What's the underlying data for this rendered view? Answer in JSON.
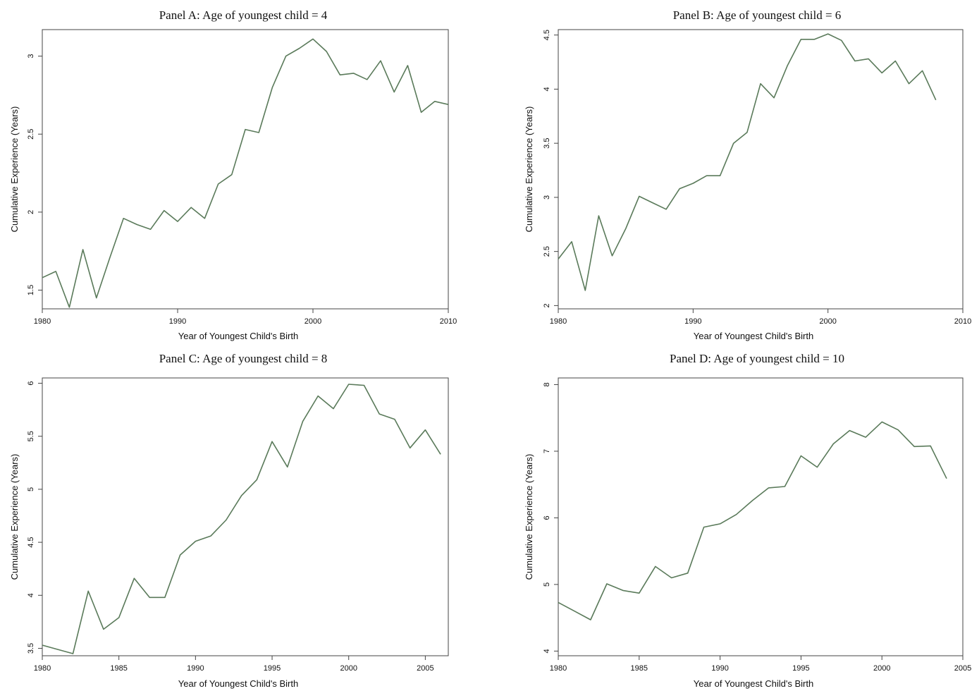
{
  "colors": {
    "line": "#5a7a5a",
    "frame": "#444444"
  },
  "chart_data": [
    {
      "type": "line",
      "title": "Panel A:  Age of youngest child = 4",
      "xlabel": "Year of Youngest Child's Birth",
      "ylabel": "Cumulative Experience (Years)",
      "xlim": [
        1980,
        2010
      ],
      "ylim": [
        1.38,
        3.17
      ],
      "xticks": [
        1980,
        1990,
        2000,
        2010
      ],
      "xtick_labels": [
        "1980",
        "1990",
        "2000",
        "2010"
      ],
      "yticks": [
        1.5,
        2,
        2.5,
        3
      ],
      "ytick_labels": [
        "1.5",
        "2",
        "2.5",
        "3"
      ],
      "grid": false,
      "legend": "none",
      "series": [
        {
          "x": [
            1980,
            1981,
            1982,
            1983,
            1984,
            1985,
            1986,
            1987,
            1988,
            1989,
            1990,
            1991,
            1992,
            1993,
            1994,
            1995,
            1996,
            1997,
            1998,
            1999,
            2000,
            2001,
            2002,
            2003,
            2004,
            2005,
            2006,
            2007,
            2008,
            2009,
            2010
          ],
          "values": [
            1.58,
            1.62,
            1.39,
            1.76,
            1.45,
            1.71,
            1.96,
            1.92,
            1.89,
            2.01,
            1.94,
            2.03,
            1.96,
            2.18,
            2.24,
            2.53,
            2.51,
            2.8,
            3.0,
            3.05,
            3.11,
            3.03,
            2.88,
            2.89,
            2.85,
            2.97,
            2.77,
            2.94,
            2.64,
            2.71,
            2.69
          ]
        }
      ]
    },
    {
      "type": "line",
      "title": "Panel B:  Age of youngest child = 6",
      "xlabel": "Year of Youngest Child's Birth",
      "ylabel": "Cumulative Experience (Years)",
      "xlim": [
        1980,
        2010
      ],
      "ylim": [
        1.97,
        4.55
      ],
      "xticks": [
        1980,
        1990,
        2000,
        2010
      ],
      "xtick_labels": [
        "1980",
        "1990",
        "2000",
        "2010"
      ],
      "yticks": [
        2,
        2.5,
        3,
        3.5,
        4,
        4.5
      ],
      "ytick_labels": [
        "2",
        "2.5",
        "3",
        "3.5",
        "4",
        "4.5"
      ],
      "grid": false,
      "legend": "none",
      "series": [
        {
          "x": [
            1980,
            1981,
            1982,
            1983,
            1984,
            1985,
            1986,
            1987,
            1988,
            1989,
            1990,
            1991,
            1992,
            1993,
            1994,
            1995,
            1996,
            1997,
            1998,
            1999,
            2000,
            2001,
            2002,
            2003,
            2004,
            2005,
            2006,
            2007,
            2008
          ],
          "values": [
            2.43,
            2.59,
            2.14,
            2.83,
            2.46,
            2.71,
            3.01,
            2.95,
            2.89,
            3.08,
            3.13,
            3.2,
            3.2,
            3.5,
            3.6,
            4.05,
            3.92,
            4.22,
            4.46,
            4.46,
            4.51,
            4.45,
            4.26,
            4.28,
            4.15,
            4.26,
            4.05,
            4.17,
            3.9
          ]
        }
      ]
    },
    {
      "type": "line",
      "title": "Panel C:  Age of youngest child = 8",
      "xlabel": "Year of Youngest Child's Birth",
      "ylabel": "Cumulative Experience (Years)",
      "xlim": [
        1980,
        2006.5
      ],
      "ylim": [
        3.43,
        6.05
      ],
      "xticks": [
        1980,
        1985,
        1990,
        1995,
        2000,
        2005
      ],
      "xtick_labels": [
        "1980",
        "1985",
        "1990",
        "1995",
        "2000",
        "2005"
      ],
      "yticks": [
        3.5,
        4,
        4.5,
        5,
        5.5,
        6
      ],
      "ytick_labels": [
        "3.5",
        "4",
        "4.5",
        "5",
        "5.5",
        "6"
      ],
      "grid": false,
      "legend": "none",
      "series": [
        {
          "x": [
            1980,
            1981,
            1982,
            1983,
            1984,
            1985,
            1986,
            1987,
            1988,
            1989,
            1990,
            1991,
            1992,
            1993,
            1994,
            1995,
            1996,
            1997,
            1998,
            1999,
            2000,
            2001,
            2002,
            2003,
            2004,
            2005,
            2006
          ],
          "values": [
            3.53,
            3.49,
            3.45,
            4.04,
            3.68,
            3.79,
            4.16,
            3.98,
            3.98,
            4.38,
            4.51,
            4.56,
            4.71,
            4.94,
            5.09,
            5.45,
            5.21,
            5.64,
            5.88,
            5.76,
            5.99,
            5.98,
            5.71,
            5.66,
            5.39,
            5.56,
            5.33
          ]
        }
      ]
    },
    {
      "type": "line",
      "title": "Panel D:  Age of youngest child = 10",
      "xlabel": "Year of Youngest Child's Birth",
      "ylabel": "Cumulative Experience (Years)",
      "xlim": [
        1980,
        2005
      ],
      "ylim": [
        3.93,
        8.1
      ],
      "xticks": [
        1980,
        1985,
        1990,
        1995,
        2000,
        2005
      ],
      "xtick_labels": [
        "1980",
        "1985",
        "1990",
        "1995",
        "2000",
        "2005"
      ],
      "yticks": [
        4,
        5,
        6,
        7,
        8
      ],
      "ytick_labels": [
        "4",
        "5",
        "6",
        "7",
        "8"
      ],
      "grid": false,
      "legend": "none",
      "series": [
        {
          "x": [
            1980,
            1981,
            1982,
            1983,
            1984,
            1985,
            1986,
            1987,
            1988,
            1989,
            1990,
            1991,
            1992,
            1993,
            1994,
            1995,
            1996,
            1997,
            1998,
            1999,
            2000,
            2001,
            2002,
            2003,
            2004
          ],
          "values": [
            4.73,
            4.6,
            4.47,
            5.01,
            4.91,
            4.87,
            5.27,
            5.1,
            5.17,
            5.86,
            5.91,
            6.05,
            6.26,
            6.45,
            6.47,
            6.93,
            6.76,
            7.11,
            7.31,
            7.21,
            7.44,
            7.32,
            7.07,
            7.08,
            6.59
          ]
        }
      ]
    }
  ]
}
